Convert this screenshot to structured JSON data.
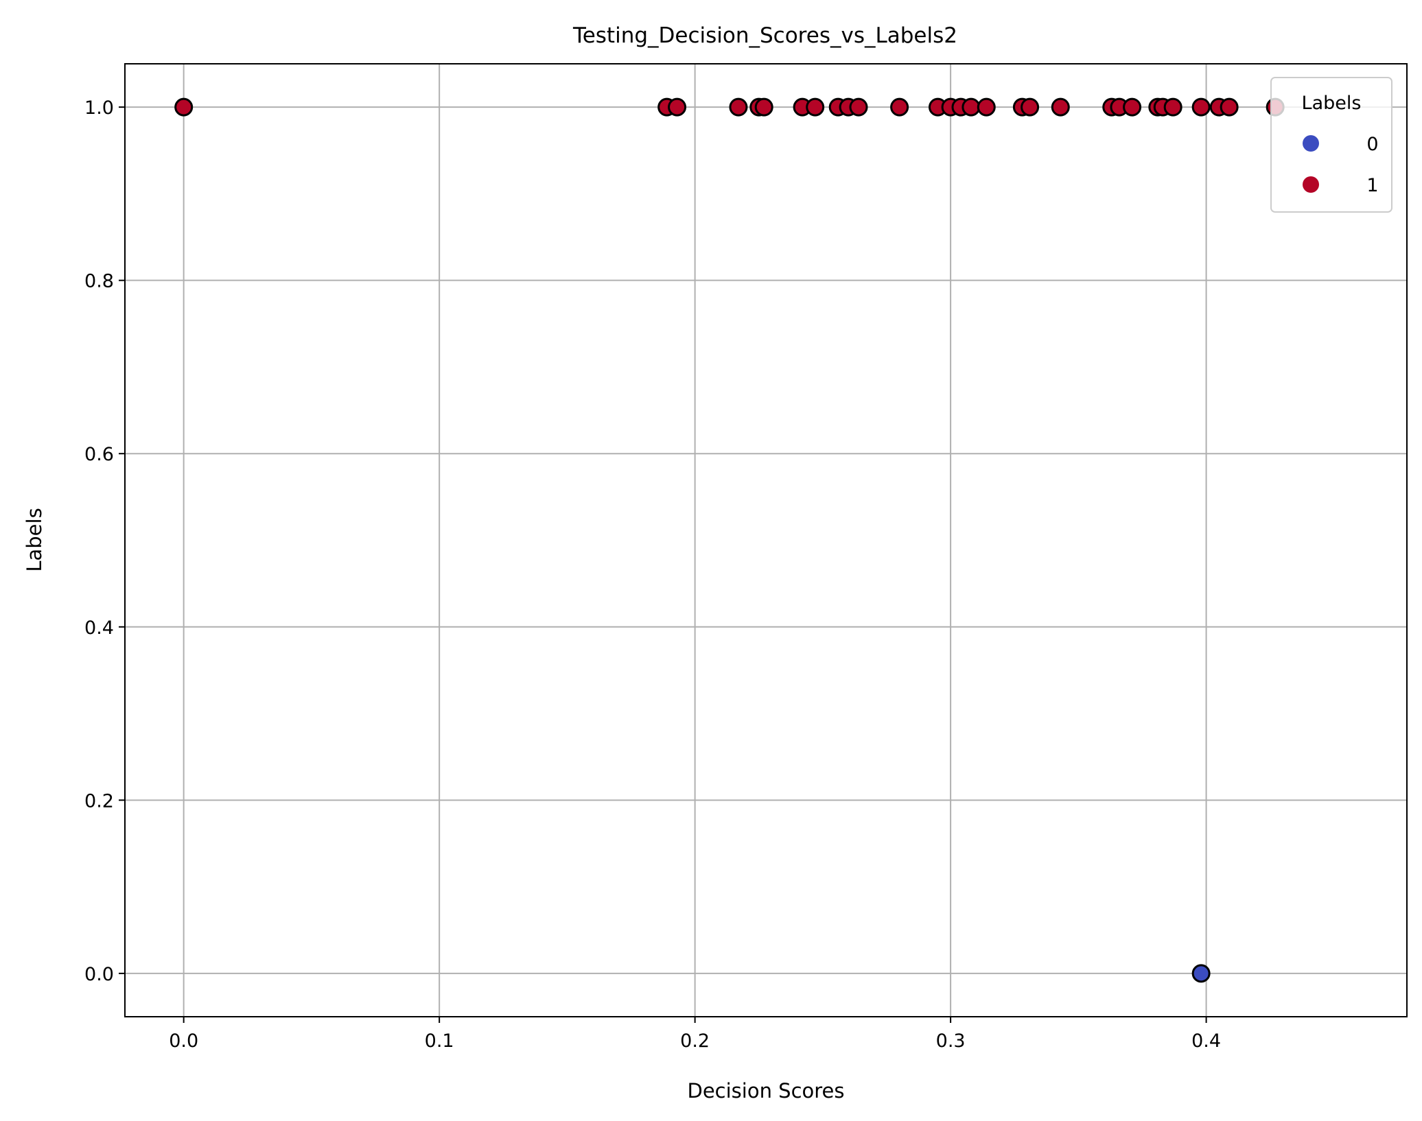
{
  "chart_data": {
    "type": "scatter",
    "title": "Testing_Decision_Scores_vs_Labels2",
    "xlabel": "Decision Scores",
    "ylabel": "Labels",
    "xlim": [
      -0.023,
      0.4785
    ],
    "ylim": [
      -0.05,
      1.05
    ],
    "xticks": [
      0.0,
      0.1,
      0.2,
      0.3,
      0.4
    ],
    "xtick_labels": [
      "0.0",
      "0.1",
      "0.2",
      "0.3",
      "0.4"
    ],
    "yticks": [
      0.0,
      0.2,
      0.4,
      0.6,
      0.8,
      1.0
    ],
    "ytick_labels": [
      "0.0",
      "0.2",
      "0.4",
      "0.6",
      "0.8",
      "1.0"
    ],
    "grid": true,
    "legend": {
      "title": "Labels",
      "placement": "top-right",
      "entries": [
        {
          "label": "0",
          "color": "#3b4cc0"
        },
        {
          "label": "1",
          "color": "#b40426"
        }
      ]
    },
    "series": [
      {
        "name": "0",
        "color": "#3b4cc0",
        "x": [
          0.398
        ],
        "y": [
          0
        ]
      },
      {
        "name": "1",
        "color": "#b40426",
        "x": [
          0.0,
          0.189,
          0.193,
          0.217,
          0.225,
          0.227,
          0.242,
          0.247,
          0.256,
          0.26,
          0.264,
          0.28,
          0.295,
          0.3,
          0.304,
          0.308,
          0.314,
          0.328,
          0.331,
          0.343,
          0.363,
          0.366,
          0.371,
          0.381,
          0.383,
          0.387,
          0.398,
          0.405,
          0.409,
          0.427
        ],
        "y": [
          1,
          1,
          1,
          1,
          1,
          1,
          1,
          1,
          1,
          1,
          1,
          1,
          1,
          1,
          1,
          1,
          1,
          1,
          1,
          1,
          1,
          1,
          1,
          1,
          1,
          1,
          1,
          1,
          1,
          1
        ]
      }
    ]
  }
}
